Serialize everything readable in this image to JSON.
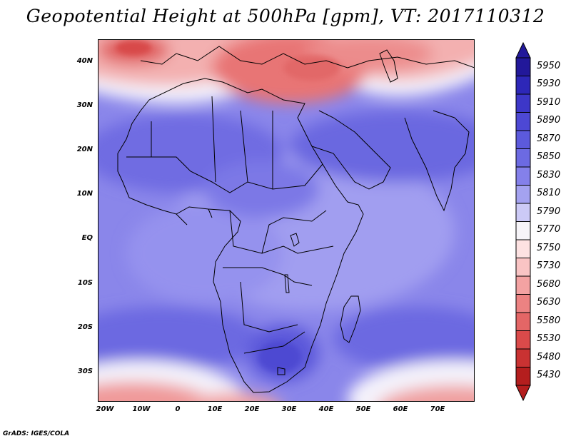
{
  "title": "Geopotential Height at 500hPa [gpm], VT: 2017110312",
  "credit": "GrADS: IGES/COLA",
  "map": {
    "lat_labels": [
      "40N",
      "30N",
      "20N",
      "10N",
      "EQ",
      "10S",
      "20S",
      "30S"
    ],
    "lon_labels": [
      "20W",
      "10W",
      "0",
      "10E",
      "20E",
      "30E",
      "40E",
      "50E",
      "60E",
      "70E"
    ]
  },
  "colorbar": {
    "levels": [
      "5950",
      "5930",
      "5910",
      "5890",
      "5870",
      "5850",
      "5830",
      "5810",
      "5790",
      "5770",
      "5750",
      "5730",
      "5680",
      "5630",
      "5580",
      "5530",
      "5480",
      "5430"
    ],
    "colors": [
      "#22189a",
      "#2d27b8",
      "#3d37c8",
      "#4d48d4",
      "#5c5adc",
      "#6c6ae2",
      "#8480ea",
      "#a4a2f0",
      "#cccaf6",
      "#f6f4f8",
      "#fde2e2",
      "#f9c4c4",
      "#f3a2a2",
      "#ec8282",
      "#e46666",
      "#da4a4a",
      "#c93232",
      "#b41e1e"
    ]
  }
}
